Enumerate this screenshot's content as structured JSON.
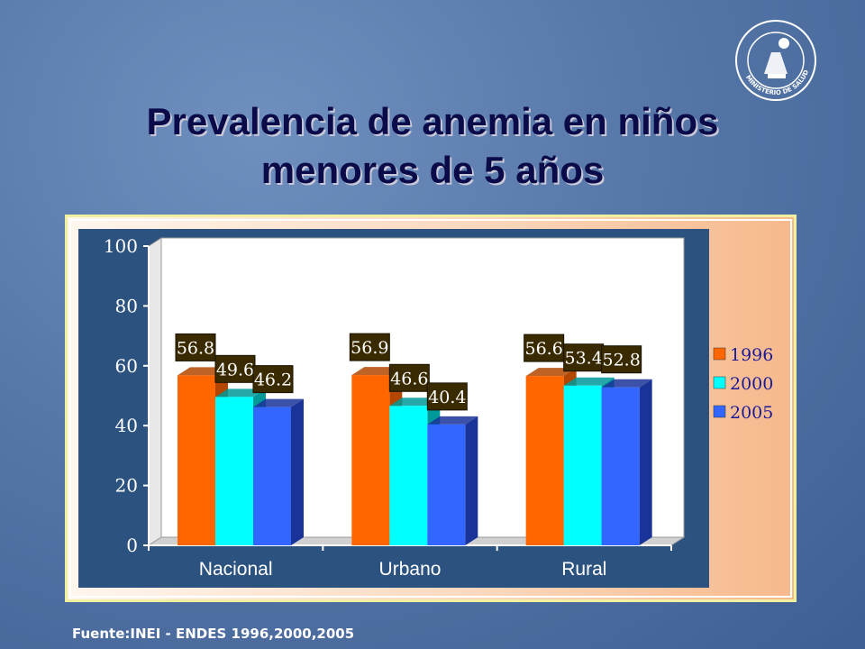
{
  "slide": {
    "title_line1": "Prevalencia de anemia en niños",
    "title_line2": "menores de 5 años",
    "source": "Fuente:INEI - ENDES 1996,2000,2005",
    "logo_text": "MINISTERIO DE SALUD"
  },
  "chart_data": {
    "type": "bar",
    "categories": [
      "Nacional",
      "Urbano",
      "Rural"
    ],
    "series": [
      {
        "name": "1996",
        "values": [
          56.8,
          56.9,
          56.6
        ],
        "color": "#ff6600",
        "side": "#b34700"
      },
      {
        "name": "2000",
        "values": [
          49.6,
          46.6,
          53.4
        ],
        "color": "#00ffff",
        "side": "#009999"
      },
      {
        "name": "2005",
        "values": [
          46.2,
          40.4,
          52.8
        ],
        "color": "#3366ff",
        "side": "#1a3399"
      }
    ],
    "ylim": [
      0,
      100
    ],
    "yticks": [
      0,
      20,
      40,
      60,
      80,
      100
    ],
    "legend": "right",
    "grid": false
  }
}
